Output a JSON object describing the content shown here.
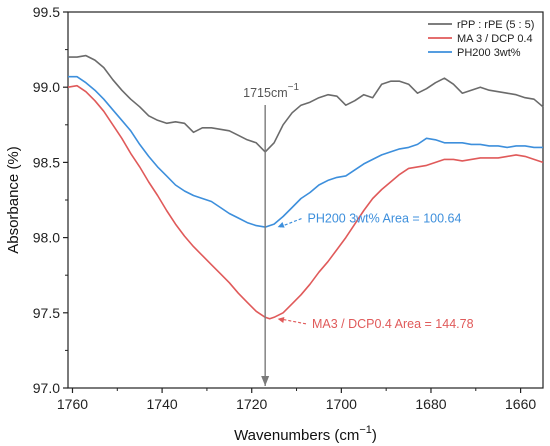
{
  "chart_data": {
    "type": "line",
    "xlabel": "Wavenumbers (cm",
    "xlabel_sup": "−1",
    "xlabel_tail": ")",
    "ylabel": "Absorbance (%)",
    "xlim": [
      1761,
      1655
    ],
    "ylim": [
      97.0,
      99.5
    ],
    "x_reversed": true,
    "grid": false,
    "legend_position": "top-right",
    "x_ticks": [
      1760,
      1740,
      1720,
      1700,
      1680,
      1660
    ],
    "y_ticks": [
      97.0,
      97.5,
      98.0,
      98.5,
      99.0,
      99.5
    ],
    "x_tick_labels": [
      "1760",
      "1740",
      "1720",
      "1700",
      "1680",
      "1660"
    ],
    "y_tick_labels": [
      "97.0",
      "97.5",
      "98.0",
      "98.5",
      "99.0",
      "99.5"
    ],
    "series": [
      {
        "name": "rPP : rPE (5 : 5)",
        "color": "#6b6b6b",
        "x": [
          1761,
          1759,
          1757,
          1755,
          1753,
          1751,
          1749,
          1747,
          1745,
          1743,
          1741,
          1739,
          1737,
          1735,
          1733,
          1731,
          1729,
          1727,
          1725,
          1723,
          1721,
          1719,
          1717,
          1715,
          1713,
          1711,
          1709,
          1707,
          1705,
          1703,
          1701,
          1699,
          1697,
          1695,
          1693,
          1691,
          1689,
          1687,
          1685,
          1683,
          1681,
          1679,
          1677,
          1675,
          1673,
          1671,
          1669,
          1667,
          1665,
          1663,
          1661,
          1659,
          1657,
          1655
        ],
        "y": [
          99.2,
          99.2,
          99.21,
          99.18,
          99.13,
          99.05,
          98.98,
          98.92,
          98.87,
          98.81,
          98.78,
          98.76,
          98.77,
          98.76,
          98.7,
          98.73,
          98.73,
          98.72,
          98.71,
          98.68,
          98.65,
          98.63,
          98.57,
          98.63,
          98.75,
          98.83,
          98.88,
          98.9,
          98.93,
          98.95,
          98.94,
          98.88,
          98.91,
          98.95,
          98.93,
          99.02,
          99.04,
          99.04,
          99.02,
          98.96,
          98.99,
          99.03,
          99.06,
          99.02,
          98.96,
          98.98,
          99.0,
          98.98,
          98.97,
          98.96,
          98.95,
          98.93,
          98.92,
          98.87
        ]
      },
      {
        "name": "MA 3 / DCP 0.4",
        "color": "#e05a5a",
        "x": [
          1761,
          1759,
          1757,
          1755,
          1753,
          1751,
          1749,
          1747,
          1745,
          1743,
          1741,
          1739,
          1737,
          1735,
          1733,
          1731,
          1729,
          1727,
          1725,
          1723,
          1721,
          1719,
          1717,
          1716,
          1715,
          1713,
          1711,
          1709,
          1707,
          1705,
          1703,
          1701,
          1699,
          1697,
          1695,
          1693,
          1691,
          1689,
          1687,
          1685,
          1683,
          1681,
          1679,
          1677,
          1675,
          1673,
          1671,
          1669,
          1667,
          1665,
          1663,
          1661,
          1659,
          1657,
          1655
        ],
        "y": [
          99.0,
          99.01,
          98.97,
          98.91,
          98.84,
          98.75,
          98.66,
          98.56,
          98.47,
          98.37,
          98.28,
          98.18,
          98.09,
          98.01,
          97.94,
          97.88,
          97.82,
          97.76,
          97.7,
          97.63,
          97.57,
          97.51,
          97.47,
          97.46,
          97.47,
          97.5,
          97.56,
          97.62,
          97.69,
          97.77,
          97.84,
          97.92,
          98.0,
          98.09,
          98.18,
          98.26,
          98.32,
          98.37,
          98.42,
          98.46,
          98.47,
          98.48,
          98.5,
          98.52,
          98.52,
          98.51,
          98.52,
          98.53,
          98.53,
          98.53,
          98.54,
          98.55,
          98.54,
          98.52,
          98.5
        ]
      },
      {
        "name": "PH200 3wt%",
        "color": "#3d8fdc",
        "x": [
          1761,
          1759,
          1757,
          1755,
          1753,
          1751,
          1749,
          1747,
          1745,
          1743,
          1741,
          1739,
          1737,
          1735,
          1733,
          1731,
          1729,
          1727,
          1725,
          1723,
          1721,
          1719,
          1717,
          1715,
          1713,
          1711,
          1709,
          1707,
          1705,
          1703,
          1701,
          1699,
          1697,
          1695,
          1693,
          1691,
          1689,
          1687,
          1685,
          1683,
          1681,
          1679,
          1677,
          1675,
          1673,
          1671,
          1669,
          1667,
          1665,
          1663,
          1661,
          1659,
          1657,
          1655
        ],
        "y": [
          99.07,
          99.07,
          99.03,
          98.98,
          98.92,
          98.85,
          98.78,
          98.71,
          98.62,
          98.54,
          98.47,
          98.41,
          98.35,
          98.31,
          98.28,
          98.26,
          98.24,
          98.2,
          98.16,
          98.13,
          98.1,
          98.08,
          98.07,
          98.09,
          98.14,
          98.2,
          98.26,
          98.3,
          98.35,
          98.38,
          98.4,
          98.41,
          98.45,
          98.49,
          98.52,
          98.55,
          98.57,
          98.59,
          98.6,
          98.62,
          98.66,
          98.65,
          98.63,
          98.63,
          98.63,
          98.62,
          98.62,
          98.61,
          98.61,
          98.6,
          98.61,
          98.61,
          98.6,
          98.6
        ]
      }
    ],
    "vertical_marker": {
      "x": 1717,
      "label_main": "1715cm",
      "label_sup": "−1",
      "color": "#7a7a7a"
    },
    "annotations": [
      {
        "text": "PH200 3wt% Area = 100.64",
        "color": "#3d8fdc",
        "point_x": 1716,
        "point_y": 98.07,
        "text_x": 1708,
        "text_y": 98.1
      },
      {
        "text": "MA3 / DCP0.4 Area = 144.78",
        "color": "#e05a5a",
        "point_x": 1716,
        "point_y": 97.46,
        "text_x": 1707,
        "text_y": 97.4
      }
    ]
  }
}
